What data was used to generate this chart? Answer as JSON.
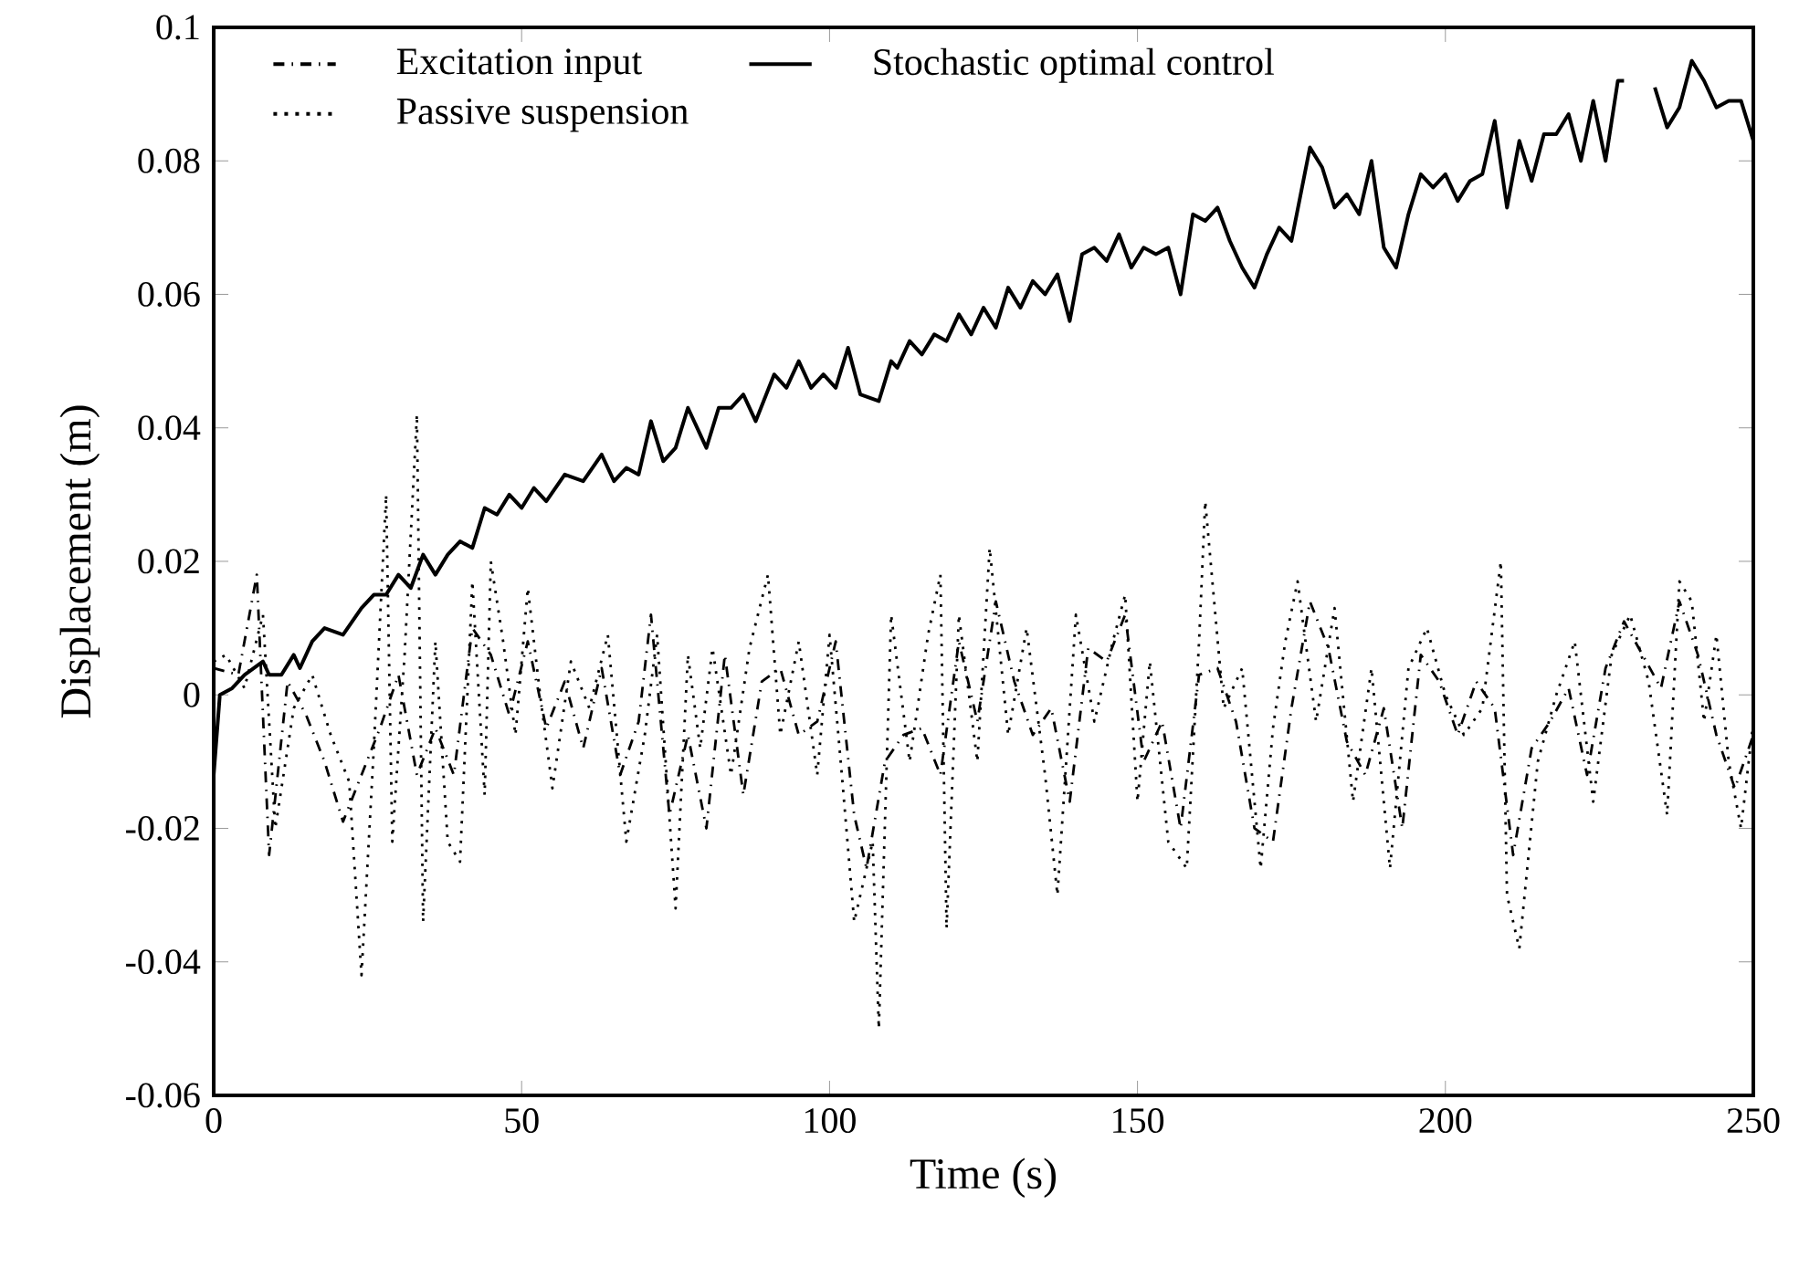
{
  "chart_data": {
    "type": "line",
    "xlabel": "Time (s)",
    "ylabel": "Displacement (m)",
    "xlim": [
      0,
      250
    ],
    "ylim": [
      -0.06,
      0.1
    ],
    "xticks": [
      0,
      50,
      100,
      150,
      200,
      250
    ],
    "yticks": [
      -0.06,
      -0.04,
      -0.02,
      0,
      0.02,
      0.04,
      0.06,
      0.08,
      0.1
    ],
    "legend": "top left",
    "grid": false,
    "marker": "none",
    "series": [
      {
        "name": "Excitation input",
        "color": "#000000",
        "line_style": "dashdot",
        "x": [
          0,
          4,
          7,
          9,
          12,
          15,
          18,
          21,
          24,
          27,
          30,
          33,
          36,
          39,
          42,
          45,
          48,
          51,
          54,
          57,
          60,
          63,
          66,
          69,
          71,
          74,
          77,
          80,
          83,
          86,
          89,
          92,
          95,
          98,
          101,
          104,
          106,
          109,
          112,
          115,
          118,
          121,
          124,
          127,
          130,
          133,
          136,
          139,
          142,
          145,
          148,
          151,
          154,
          157,
          160,
          163,
          166,
          169,
          172,
          175,
          178,
          181,
          184,
          187,
          190,
          193,
          196,
          199,
          202,
          205,
          208,
          211,
          214,
          217,
          220,
          223,
          226,
          229,
          232,
          235,
          238,
          241,
          244,
          247,
          250
        ],
        "values": [
          0.004,
          0.003,
          0.018,
          -0.024,
          0.002,
          -0.003,
          -0.01,
          -0.019,
          -0.012,
          -0.005,
          0.003,
          -0.012,
          -0.005,
          -0.012,
          0.01,
          0.006,
          -0.003,
          0.008,
          -0.005,
          0.002,
          -0.008,
          0.004,
          -0.012,
          -0.004,
          0.012,
          -0.018,
          -0.006,
          -0.02,
          0.006,
          -0.015,
          0.002,
          0.004,
          -0.006,
          -0.004,
          0.008,
          -0.018,
          -0.026,
          -0.01,
          -0.006,
          -0.005,
          -0.012,
          0.008,
          -0.004,
          0.014,
          0.002,
          -0.006,
          -0.002,
          -0.016,
          0.007,
          0.005,
          0.012,
          -0.01,
          -0.004,
          -0.02,
          0.003,
          0.004,
          -0.004,
          -0.02,
          -0.022,
          -0.002,
          0.014,
          0.007,
          -0.007,
          -0.012,
          -0.002,
          -0.02,
          0.006,
          0.002,
          -0.006,
          0.002,
          -0.002,
          -0.024,
          -0.008,
          -0.004,
          0.001,
          -0.012,
          0.004,
          0.011,
          0.006,
          0.001,
          0.014,
          0.006,
          -0.006,
          -0.014,
          -0.006
        ]
      },
      {
        "name": "Stochastic optimal control",
        "color": "#000000",
        "line_style": "solid",
        "x": [
          0,
          1,
          3,
          5,
          8,
          9,
          11,
          13,
          14,
          16,
          18,
          21,
          24,
          26,
          28,
          30,
          32,
          34,
          36,
          38,
          40,
          42,
          44,
          46,
          48,
          50,
          52,
          54,
          57,
          60,
          63,
          65,
          67,
          69,
          71,
          73,
          75,
          77,
          80,
          82,
          84,
          86,
          88,
          91,
          93,
          95,
          97,
          99,
          101,
          103,
          105,
          108,
          110,
          111,
          113,
          115,
          117,
          119,
          121,
          123,
          125,
          127,
          129,
          131,
          133,
          135,
          137,
          139,
          141,
          143,
          145,
          147,
          149,
          151,
          153,
          155,
          157,
          159,
          161,
          163,
          165,
          167,
          169,
          171,
          173,
          175,
          178,
          180,
          182,
          184,
          186,
          188,
          190,
          192,
          194,
          196,
          198,
          200,
          202,
          204,
          206,
          208,
          210,
          212,
          214,
          216,
          218,
          220,
          222,
          224,
          226,
          228,
          229,
          231,
          234,
          236,
          238,
          240,
          242,
          244,
          246,
          248,
          250
        ],
        "values": [
          -0.012,
          0,
          0.001,
          0.003,
          0.005,
          0.003,
          0.003,
          0.006,
          0.004,
          0.008,
          0.01,
          0.009,
          0.013,
          0.015,
          0.015,
          0.018,
          0.016,
          0.021,
          0.018,
          0.021,
          0.023,
          0.022,
          0.028,
          0.027,
          0.03,
          0.028,
          0.031,
          0.029,
          0.033,
          0.032,
          0.036,
          0.032,
          0.034,
          0.033,
          0.041,
          0.035,
          0.037,
          0.043,
          0.037,
          0.043,
          0.043,
          0.045,
          0.041,
          0.048,
          0.046,
          0.05,
          0.046,
          0.048,
          0.046,
          0.052,
          0.045,
          0.044,
          0.05,
          0.049,
          0.053,
          0.051,
          0.054,
          0.053,
          0.057,
          0.054,
          0.058,
          0.055,
          0.061,
          0.058,
          0.062,
          0.06,
          0.063,
          0.056,
          0.066,
          0.067,
          0.065,
          0.069,
          0.064,
          0.067,
          0.066,
          0.067,
          0.06,
          0.072,
          0.071,
          0.073,
          0.068,
          0.064,
          0.061,
          0.066,
          0.07,
          0.068,
          0.082,
          0.079,
          0.073,
          0.075,
          0.072,
          0.08,
          0.067,
          0.064,
          0.072,
          0.078,
          0.076,
          0.078,
          0.074,
          0.077,
          0.078,
          0.086,
          0.073,
          0.083,
          0.077,
          0.084,
          0.084,
          0.087,
          0.08,
          0.089,
          0.08,
          0.092,
          0.092,
          null,
          0.091,
          0.085,
          0.088,
          0.095,
          0.092,
          0.088,
          0.089,
          0.089,
          0.083
        ]
      },
      {
        "name": "Passive suspension",
        "color": "#000000",
        "line_style": "dotted",
        "x": [
          0,
          2,
          5,
          8,
          10,
          13,
          16,
          19,
          22,
          24,
          26,
          28,
          29,
          31,
          33,
          34,
          36,
          38,
          40,
          42,
          44,
          45,
          47,
          49,
          51,
          53,
          55,
          58,
          61,
          64,
          67,
          70,
          72,
          75,
          77,
          79,
          81,
          84,
          87,
          90,
          92,
          95,
          98,
          100,
          102,
          104,
          107,
          108,
          110,
          113,
          116,
          118,
          119,
          121,
          124,
          126,
          129,
          132,
          135,
          137,
          140,
          143,
          146,
          148,
          150,
          152,
          155,
          158,
          160,
          161,
          164,
          167,
          170,
          172,
          174,
          176,
          179,
          182,
          185,
          188,
          191,
          194,
          197,
          200,
          203,
          206,
          209,
          210,
          212,
          215,
          218,
          221,
          224,
          227,
          230,
          233,
          236,
          238,
          240,
          242,
          244,
          246,
          248,
          250
        ],
        "values": [
          0.005,
          0.006,
          0.001,
          0.012,
          -0.02,
          -0.002,
          0.003,
          -0.006,
          -0.013,
          -0.042,
          -0.008,
          0.03,
          -0.022,
          0.006,
          0.042,
          -0.034,
          0.008,
          -0.022,
          -0.025,
          0.017,
          -0.015,
          0.02,
          0.008,
          -0.006,
          0.016,
          0,
          -0.014,
          0.005,
          -0.002,
          0.009,
          -0.022,
          -0.006,
          0.009,
          -0.032,
          0.006,
          -0.008,
          0.007,
          -0.012,
          0.007,
          0.018,
          -0.006,
          0.008,
          -0.012,
          0.009,
          -0.012,
          -0.034,
          -0.022,
          -0.05,
          0.012,
          -0.01,
          0.009,
          0.018,
          -0.035,
          0.012,
          -0.01,
          0.022,
          -0.006,
          0.01,
          -0.012,
          -0.03,
          0.012,
          -0.004,
          0.008,
          0.015,
          -0.016,
          0.005,
          -0.022,
          -0.026,
          0.008,
          0.029,
          -0.002,
          0.004,
          -0.026,
          -0.005,
          0.008,
          0.017,
          -0.004,
          0.013,
          -0.016,
          0.004,
          -0.026,
          0.004,
          0.01,
          0,
          -0.006,
          -0.002,
          0.02,
          -0.03,
          -0.038,
          -0.01,
          0,
          0.008,
          -0.016,
          0.006,
          0.012,
          0.002,
          -0.018,
          0.017,
          0.014,
          -0.004,
          0.009,
          -0.01,
          -0.02,
          -0.004
        ]
      }
    ]
  }
}
